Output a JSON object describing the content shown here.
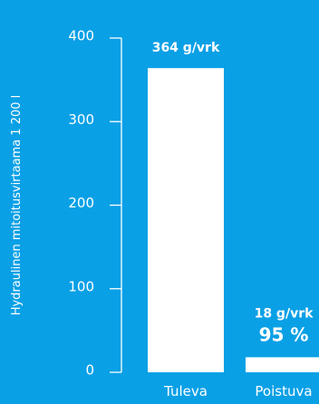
{
  "colors": {
    "background": "#0aa0e6",
    "foreground": "#ffffff"
  },
  "chart_data": {
    "type": "bar",
    "ylabel": "Hydraulinen mitoitusvirtaama 1 200 l",
    "ylim": [
      0,
      400
    ],
    "yticks": [
      "0",
      "100",
      "200",
      "300",
      "400"
    ],
    "grid": false,
    "categories": [
      "Tuleva",
      "Poistuva"
    ],
    "values": [
      364,
      18
    ],
    "data_labels": [
      [
        "364 g/vrk"
      ],
      [
        "18 g/vrk",
        "95 %"
      ]
    ]
  }
}
